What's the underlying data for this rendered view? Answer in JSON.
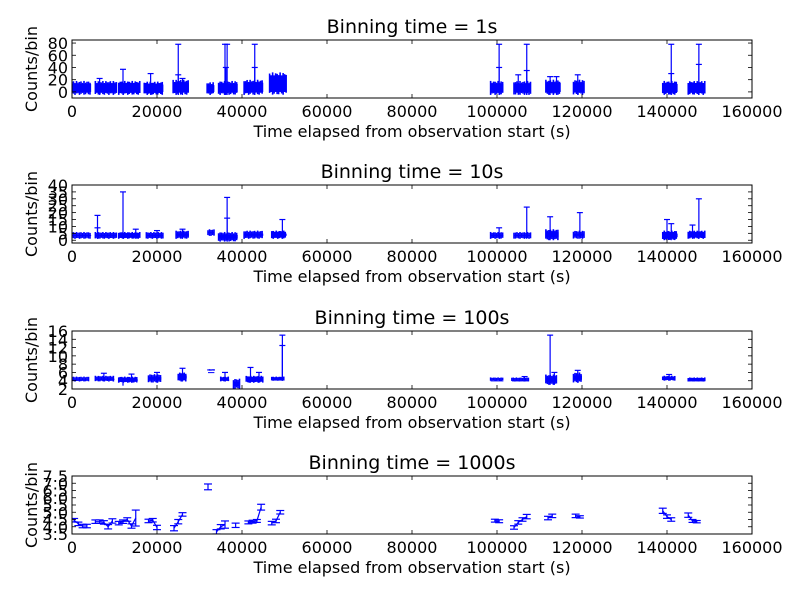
{
  "chart_data": [
    {
      "type": "scatter",
      "title": "Binning time = 1s",
      "xlabel": "Time elapsed from observation start (s)",
      "ylabel": "Counts/bin",
      "xlim": [
        0,
        160000
      ],
      "ylim": [
        -10,
        85
      ],
      "xticks": [
        0,
        20000,
        40000,
        60000,
        80000,
        100000,
        120000,
        140000,
        160000
      ],
      "xtick_labels": [
        "0",
        "20000",
        "40000",
        "60000",
        "80000",
        "100000",
        "120000",
        "140000",
        "160000"
      ],
      "yticks": [
        0,
        20,
        40,
        60,
        80
      ],
      "ytick_labels": [
        "0",
        "20",
        "40",
        "60",
        "80"
      ],
      "grid": false,
      "color": "#0000ff",
      "segments": [
        {
          "x0": 0,
          "x1": 4500,
          "lo": -5,
          "hi": 18,
          "spikes": []
        },
        {
          "x0": 5500,
          "x1": 10500,
          "lo": -5,
          "hi": 18,
          "spikes": [
            {
              "x": 6500,
              "hi": 22
            }
          ]
        },
        {
          "x0": 11000,
          "x1": 16000,
          "lo": -5,
          "hi": 18,
          "spikes": [
            {
              "x": 12000,
              "hi": 37
            }
          ]
        },
        {
          "x0": 17000,
          "x1": 21500,
          "lo": -5,
          "hi": 17,
          "spikes": [
            {
              "x": 18500,
              "hi": 30
            }
          ]
        },
        {
          "x0": 23800,
          "x1": 27500,
          "lo": -5,
          "hi": 20,
          "spikes": [
            {
              "x": 25000,
              "hi": 78
            },
            {
              "x": 25000,
              "hi": 28
            },
            {
              "x": 26000,
              "hi": 22
            }
          ]
        },
        {
          "x0": 31800,
          "x1": 33500,
          "lo": -5,
          "hi": 16,
          "spikes": []
        },
        {
          "x0": 34500,
          "x1": 39000,
          "lo": -5,
          "hi": 18,
          "spikes": [
            {
              "x": 36000,
              "hi": 78
            },
            {
              "x": 36500,
              "hi": 78
            },
            {
              "x": 36200,
              "hi": 40
            }
          ]
        },
        {
          "x0": 40500,
          "x1": 45000,
          "lo": -5,
          "hi": 20,
          "spikes": [
            {
              "x": 43000,
              "hi": 78
            },
            {
              "x": 43000,
              "hi": 40
            }
          ]
        },
        {
          "x0": 46500,
          "x1": 50500,
          "lo": -5,
          "hi": 32,
          "spikes": []
        },
        {
          "x0": 98500,
          "x1": 101500,
          "lo": -5,
          "hi": 18,
          "spikes": [
            {
              "x": 100500,
              "hi": 78
            },
            {
              "x": 100500,
              "hi": 40
            }
          ]
        },
        {
          "x0": 104000,
          "x1": 108000,
          "lo": -5,
          "hi": 18,
          "spikes": [
            {
              "x": 105000,
              "hi": 28
            },
            {
              "x": 107000,
              "hi": 78
            },
            {
              "x": 107000,
              "hi": 35
            }
          ]
        },
        {
          "x0": 111500,
          "x1": 115000,
          "lo": -5,
          "hi": 20,
          "spikes": [
            {
              "x": 112500,
              "hi": 25
            },
            {
              "x": 114000,
              "hi": 25
            }
          ]
        },
        {
          "x0": 118000,
          "x1": 120500,
          "lo": -5,
          "hi": 20,
          "spikes": [
            {
              "x": 119000,
              "hi": 28
            }
          ]
        },
        {
          "x0": 139000,
          "x1": 142500,
          "lo": -5,
          "hi": 18,
          "spikes": [
            {
              "x": 141000,
              "hi": 78
            },
            {
              "x": 141000,
              "hi": 30
            }
          ]
        },
        {
          "x0": 145000,
          "x1": 149000,
          "lo": -5,
          "hi": 18,
          "spikes": [
            {
              "x": 147500,
              "hi": 78
            },
            {
              "x": 147500,
              "hi": 45
            }
          ]
        }
      ]
    },
    {
      "type": "scatter",
      "title": "Binning time = 10s",
      "xlabel": "Time elapsed from observation start (s)",
      "ylabel": "Counts/bin",
      "xlim": [
        0,
        160000
      ],
      "ylim": [
        -2,
        40
      ],
      "xticks": [
        0,
        20000,
        40000,
        60000,
        80000,
        100000,
        120000,
        140000,
        160000
      ],
      "xtick_labels": [
        "0",
        "20000",
        "40000",
        "60000",
        "80000",
        "100000",
        "120000",
        "140000",
        "160000"
      ],
      "yticks": [
        0,
        5,
        10,
        15,
        20,
        25,
        30,
        35,
        40
      ],
      "ytick_labels": [
        "0",
        "5",
        "10",
        "15",
        "20",
        "25",
        "30",
        "35",
        "40"
      ],
      "grid": false,
      "color": "#0000ff",
      "segments": [
        {
          "x0": 0,
          "x1": 4500,
          "lo": 1,
          "hi": 6,
          "spikes": []
        },
        {
          "x0": 5500,
          "x1": 10500,
          "lo": 1,
          "hi": 6,
          "spikes": [
            {
              "x": 6000,
              "hi": 18
            },
            {
              "x": 6000,
              "hi": 9
            }
          ]
        },
        {
          "x0": 11000,
          "x1": 16000,
          "lo": 1,
          "hi": 6,
          "spikes": [
            {
              "x": 12000,
              "hi": 35
            },
            {
              "x": 15000,
              "hi": 8
            }
          ]
        },
        {
          "x0": 17500,
          "x1": 21500,
          "lo": 1,
          "hi": 6,
          "spikes": [
            {
              "x": 20000,
              "hi": 7
            }
          ]
        },
        {
          "x0": 24500,
          "x1": 27500,
          "lo": 1,
          "hi": 7,
          "spikes": [
            {
              "x": 26000,
              "hi": 8
            }
          ]
        },
        {
          "x0": 32000,
          "x1": 33500,
          "lo": 3,
          "hi": 8,
          "spikes": []
        },
        {
          "x0": 34500,
          "x1": 39000,
          "lo": -1,
          "hi": 6,
          "spikes": [
            {
              "x": 36500,
              "hi": 31
            },
            {
              "x": 36500,
              "hi": 16
            }
          ]
        },
        {
          "x0": 40500,
          "x1": 45000,
          "lo": 1,
          "hi": 7,
          "spikes": []
        },
        {
          "x0": 47000,
          "x1": 50500,
          "lo": 1,
          "hi": 7,
          "spikes": [
            {
              "x": 49500,
              "hi": 15
            }
          ]
        },
        {
          "x0": 98500,
          "x1": 101500,
          "lo": 1,
          "hi": 6,
          "spikes": [
            {
              "x": 100500,
              "hi": 9
            }
          ]
        },
        {
          "x0": 104000,
          "x1": 108000,
          "lo": 1,
          "hi": 6,
          "spikes": [
            {
              "x": 107000,
              "hi": 24
            }
          ]
        },
        {
          "x0": 111500,
          "x1": 114500,
          "lo": 0,
          "hi": 8,
          "spikes": [
            {
              "x": 112500,
              "hi": 17
            }
          ]
        },
        {
          "x0": 118000,
          "x1": 120500,
          "lo": 1,
          "hi": 7,
          "spikes": [
            {
              "x": 119500,
              "hi": 20
            }
          ]
        },
        {
          "x0": 139000,
          "x1": 142500,
          "lo": 0,
          "hi": 7,
          "spikes": [
            {
              "x": 140000,
              "hi": 15
            },
            {
              "x": 141000,
              "hi": 12
            }
          ]
        },
        {
          "x0": 145000,
          "x1": 149000,
          "lo": 1,
          "hi": 7,
          "spikes": [
            {
              "x": 146000,
              "hi": 11
            },
            {
              "x": 147500,
              "hi": 30
            }
          ]
        }
      ]
    },
    {
      "type": "scatter",
      "title": "Binning time = 100s",
      "xlabel": "Time elapsed from observation start (s)",
      "ylabel": "Counts/bin",
      "xlim": [
        0,
        160000
      ],
      "ylim": [
        2,
        16
      ],
      "xticks": [
        0,
        20000,
        40000,
        60000,
        80000,
        100000,
        120000,
        140000,
        160000
      ],
      "xtick_labels": [
        "0",
        "20000",
        "40000",
        "60000",
        "80000",
        "100000",
        "120000",
        "140000",
        "160000"
      ],
      "yticks": [
        2,
        4,
        6,
        8,
        10,
        12,
        14,
        16
      ],
      "ytick_labels": [
        "2",
        "4",
        "6",
        "8",
        "10",
        "12",
        "14",
        "16"
      ],
      "grid": false,
      "color": "#0000ff",
      "segments": [
        {
          "x0": 0,
          "x1": 4000,
          "lo": 3.8,
          "hi": 5.0,
          "spikes": []
        },
        {
          "x0": 5500,
          "x1": 10000,
          "lo": 3.8,
          "hi": 5.2,
          "spikes": [
            {
              "x": 7500,
              "hi": 5.8
            }
          ]
        },
        {
          "x0": 11000,
          "x1": 15500,
          "lo": 3.5,
          "hi": 5.0,
          "spikes": [
            {
              "x": 12000,
              "lo": 2.8,
              "hi": 4.5
            },
            {
              "x": 14000,
              "hi": 5.6
            }
          ]
        },
        {
          "x0": 18000,
          "x1": 21000,
          "lo": 3.5,
          "hi": 5.6,
          "spikes": [
            {
              "x": 20000,
              "hi": 6.0
            }
          ]
        },
        {
          "x0": 25000,
          "x1": 27000,
          "lo": 3.8,
          "hi": 6.0,
          "spikes": [
            {
              "x": 26000,
              "hi": 7.0
            }
          ]
        },
        {
          "x0": 32000,
          "x1": 33500,
          "lo": 6.4,
          "hi": 6.8,
          "spikes": []
        },
        {
          "x0": 35000,
          "x1": 37000,
          "lo": 3.8,
          "hi": 5.0,
          "spikes": [
            {
              "x": 36000,
              "hi": 6.0
            }
          ]
        },
        {
          "x0": 38000,
          "x1": 39500,
          "lo": 2.0,
          "hi": 4.5,
          "spikes": []
        },
        {
          "x0": 41000,
          "x1": 45000,
          "lo": 3.5,
          "hi": 5.2,
          "spikes": [
            {
              "x": 42000,
              "hi": 7.2
            },
            {
              "x": 44000,
              "hi": 6.0
            }
          ]
        },
        {
          "x0": 47000,
          "x1": 50000,
          "lo": 4.0,
          "hi": 5.0,
          "spikes": [
            {
              "x": 49500,
              "hi": 15.0
            },
            {
              "x": 49500,
              "hi": 12.5
            }
          ]
        },
        {
          "x0": 98500,
          "x1": 101500,
          "lo": 4.0,
          "hi": 4.8,
          "spikes": []
        },
        {
          "x0": 103500,
          "x1": 107500,
          "lo": 3.8,
          "hi": 4.8,
          "spikes": [
            {
              "x": 106500,
              "hi": 5.0
            }
          ]
        },
        {
          "x0": 111500,
          "x1": 114000,
          "lo": 3.0,
          "hi": 5.5,
          "spikes": [
            {
              "x": 112500,
              "hi": 15.0
            },
            {
              "x": 113500,
              "hi": 6.0
            }
          ]
        },
        {
          "x0": 118000,
          "x1": 120000,
          "lo": 3.5,
          "hi": 6.0,
          "spikes": [
            {
              "x": 119000,
              "hi": 6.5
            }
          ]
        },
        {
          "x0": 139000,
          "x1": 142000,
          "lo": 4.0,
          "hi": 5.2,
          "spikes": [
            {
              "x": 140500,
              "hi": 5.5
            }
          ]
        },
        {
          "x0": 145000,
          "x1": 149000,
          "lo": 3.8,
          "hi": 4.8,
          "spikes": []
        }
      ]
    },
    {
      "type": "line",
      "title": "Binning time = 1000s",
      "xlabel": "Time elapsed from observation start (s)",
      "ylabel": "Counts/bin",
      "xlim": [
        0,
        160000
      ],
      "ylim": [
        3.5,
        7.5
      ],
      "xticks": [
        0,
        20000,
        40000,
        60000,
        80000,
        100000,
        120000,
        140000,
        160000
      ],
      "xtick_labels": [
        "0",
        "20000",
        "40000",
        "60000",
        "80000",
        "100000",
        "120000",
        "140000",
        "160000"
      ],
      "yticks": [
        3.5,
        4.0,
        4.5,
        5.0,
        5.5,
        6.0,
        6.5,
        7.0,
        7.5
      ],
      "ytick_labels": [
        "3.5",
        "4.0",
        "4.5",
        "5.0",
        "5.5",
        "6.0",
        "6.5",
        "7.0",
        "7.5"
      ],
      "grid": false,
      "color": "#0000ff",
      "series": [
        {
          "x": [
            500,
            1500,
            2500,
            3500
          ],
          "y": [
            4.45,
            4.2,
            4.05,
            4.05
          ],
          "err": [
            0.12,
            0.12,
            0.12,
            0.12
          ]
        },
        {
          "x": [
            5500,
            6500,
            7500,
            8500,
            9500
          ],
          "y": [
            4.35,
            4.35,
            4.3,
            4.0,
            4.4
          ],
          "err": [
            0.12,
            0.12,
            0.12,
            0.15,
            0.15
          ]
        },
        {
          "x": [
            11000,
            12000,
            13000,
            14000,
            15000
          ],
          "y": [
            4.25,
            4.35,
            4.5,
            4.05,
            4.6
          ],
          "err": [
            0.12,
            0.12,
            0.12,
            0.15,
            0.55
          ]
        },
        {
          "x": [
            18000,
            19000,
            20000
          ],
          "y": [
            4.4,
            4.45,
            3.95
          ],
          "err": [
            0.12,
            0.12,
            0.15
          ]
        },
        {
          "x": [
            24000,
            25000,
            26000
          ],
          "y": [
            3.9,
            4.35,
            4.85
          ],
          "err": [
            0.18,
            0.15,
            0.12
          ]
        },
        {
          "x": [
            32000
          ],
          "y": [
            6.75
          ],
          "err": [
            0.2
          ]
        },
        {
          "x": [
            34000,
            35000,
            36000
          ],
          "y": [
            3.65,
            4.0,
            4.15
          ],
          "err": [
            0.15,
            0.15,
            0.25
          ]
        },
        {
          "x": [
            38500
          ],
          "y": [
            4.1
          ],
          "err": [
            0.15
          ]
        },
        {
          "x": [
            41500,
            42500,
            43500,
            44500
          ],
          "y": [
            4.3,
            4.35,
            4.4,
            5.35
          ],
          "err": [
            0.1,
            0.1,
            0.1,
            0.2
          ]
        },
        {
          "x": [
            47000,
            48000,
            49000
          ],
          "y": [
            4.25,
            4.4,
            5.0
          ],
          "err": [
            0.12,
            0.12,
            0.12
          ]
        },
        {
          "x": [
            99500,
            100500
          ],
          "y": [
            4.42,
            4.38
          ],
          "err": [
            0.1,
            0.1
          ]
        },
        {
          "x": [
            104000,
            105000,
            106000,
            107000
          ],
          "y": [
            3.95,
            4.3,
            4.5,
            4.7
          ],
          "err": [
            0.12,
            0.12,
            0.12,
            0.15
          ]
        },
        {
          "x": [
            112000,
            113000
          ],
          "y": [
            4.6,
            4.75
          ],
          "err": [
            0.12,
            0.12
          ]
        },
        {
          "x": [
            118500,
            119500
          ],
          "y": [
            4.75,
            4.68
          ],
          "err": [
            0.12,
            0.08
          ]
        },
        {
          "x": [
            139000,
            140000,
            141000
          ],
          "y": [
            5.1,
            4.7,
            4.5
          ],
          "err": [
            0.18,
            0.12,
            0.12
          ]
        },
        {
          "x": [
            145000,
            146000,
            147000
          ],
          "y": [
            4.8,
            4.4,
            4.35
          ],
          "err": [
            0.15,
            0.1,
            0.08
          ]
        }
      ]
    }
  ]
}
